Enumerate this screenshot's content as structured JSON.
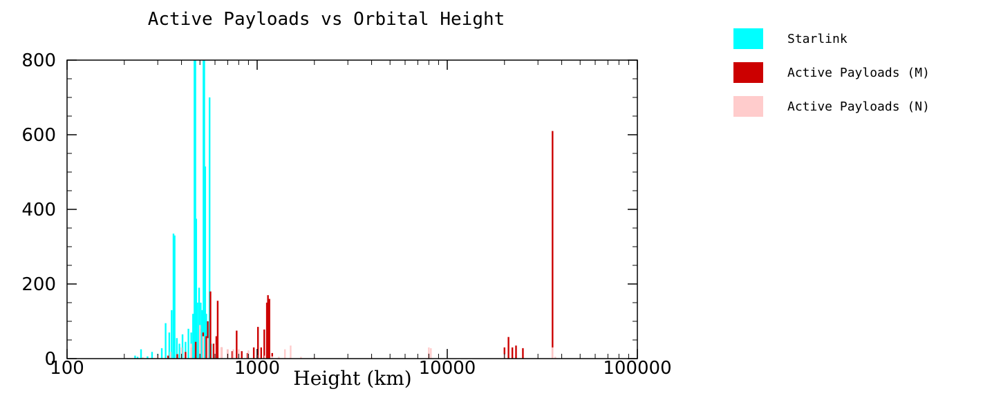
{
  "chart_data": {
    "type": "bar",
    "title": "Active Payloads vs Orbital Height",
    "xlabel": "Height (km)",
    "ylabel": "",
    "x_scale": "log",
    "xlim": [
      100,
      100000
    ],
    "ylim": [
      0,
      800
    ],
    "x_ticks": [
      "100",
      "1000",
      "10000",
      "100000"
    ],
    "y_ticks": [
      "0",
      "200",
      "400",
      "600",
      "800"
    ],
    "legend_position": "right",
    "series": [
      {
        "name": "Starlink",
        "color": "#00ffff",
        "points": [
          [
            228,
            8
          ],
          [
            235,
            5
          ],
          [
            245,
            25
          ],
          [
            265,
            6
          ],
          [
            280,
            18
          ],
          [
            300,
            12
          ],
          [
            315,
            28
          ],
          [
            330,
            95
          ],
          [
            345,
            70
          ],
          [
            355,
            130
          ],
          [
            363,
            335
          ],
          [
            368,
            330
          ],
          [
            378,
            55
          ],
          [
            390,
            40
          ],
          [
            405,
            65
          ],
          [
            420,
            45
          ],
          [
            435,
            80
          ],
          [
            450,
            70
          ],
          [
            460,
            120
          ],
          [
            468,
            800
          ],
          [
            473,
            800
          ],
          [
            478,
            375
          ],
          [
            485,
            150
          ],
          [
            495,
            190
          ],
          [
            505,
            150
          ],
          [
            515,
            130
          ],
          [
            522,
            800
          ],
          [
            527,
            800
          ],
          [
            533,
            515
          ],
          [
            540,
            120
          ],
          [
            548,
            90
          ],
          [
            555,
            60
          ],
          [
            562,
            700
          ],
          [
            572,
            40
          ]
        ]
      },
      {
        "name": "Active Payloads (M)",
        "color": "#cc0000",
        "points": [
          [
            300,
            10
          ],
          [
            340,
            8
          ],
          [
            380,
            12
          ],
          [
            420,
            18
          ],
          [
            450,
            30
          ],
          [
            475,
            45
          ],
          [
            500,
            80
          ],
          [
            520,
            70
          ],
          [
            540,
            60
          ],
          [
            550,
            100
          ],
          [
            568,
            180
          ],
          [
            590,
            40
          ],
          [
            610,
            60
          ],
          [
            620,
            155
          ],
          [
            650,
            30
          ],
          [
            700,
            25
          ],
          [
            740,
            20
          ],
          [
            780,
            75
          ],
          [
            830,
            20
          ],
          [
            890,
            15
          ],
          [
            960,
            30
          ],
          [
            1010,
            85
          ],
          [
            1050,
            30
          ],
          [
            1090,
            78
          ],
          [
            1125,
            150
          ],
          [
            1140,
            170
          ],
          [
            1160,
            160
          ],
          [
            1200,
            15
          ],
          [
            8000,
            15
          ],
          [
            20000,
            30
          ],
          [
            21000,
            58
          ],
          [
            22000,
            30
          ],
          [
            23000,
            35
          ],
          [
            25000,
            28
          ],
          [
            35800,
            610
          ]
        ]
      },
      {
        "name": "Active Payloads (N)",
        "color": "#ffcccc",
        "points": [
          [
            250,
            4
          ],
          [
            300,
            10
          ],
          [
            350,
            18
          ],
          [
            400,
            30
          ],
          [
            450,
            40
          ],
          [
            500,
            90
          ],
          [
            520,
            60
          ],
          [
            550,
            55
          ],
          [
            600,
            38
          ],
          [
            650,
            30
          ],
          [
            700,
            25
          ],
          [
            750,
            25
          ],
          [
            800,
            25
          ],
          [
            900,
            22
          ],
          [
            1000,
            10
          ],
          [
            1100,
            8
          ],
          [
            1200,
            6
          ],
          [
            1300,
            5
          ],
          [
            1400,
            25
          ],
          [
            1500,
            35
          ],
          [
            1700,
            5
          ],
          [
            2000,
            3
          ],
          [
            4000,
            3
          ],
          [
            8000,
            30
          ],
          [
            8200,
            28
          ],
          [
            20000,
            12
          ],
          [
            35800,
            30
          ],
          [
            37000,
            5
          ]
        ]
      }
    ]
  }
}
